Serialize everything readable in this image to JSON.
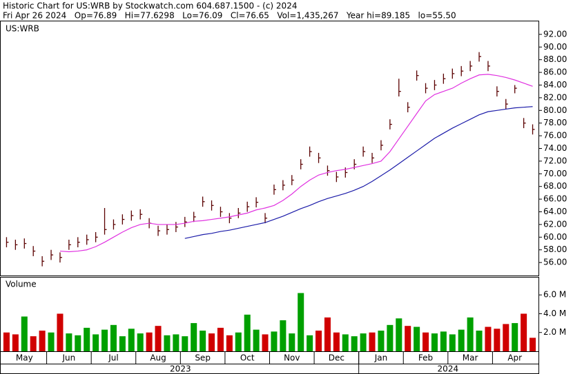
{
  "header": {
    "line1": "Historic Chart for US:WRB by Stockwatch.com 604.687.1500 - (c) 2024",
    "line2": "Fri Apr 26 2024   Op=76.89   Hi=77.6298   Lo=76.09   Cl=76.65   Vol=1,435,267   Year hi=89.185   lo=55.50"
  },
  "chart_data": {
    "type": "stock",
    "symbol": "US:WRB",
    "x": [
      "2023-05",
      "2023-05",
      "2023-05",
      "2023-05",
      "2023-05",
      "2023-06",
      "2023-06",
      "2023-06",
      "2023-06",
      "2023-06",
      "2023-07",
      "2023-07",
      "2023-07",
      "2023-07",
      "2023-07",
      "2023-08",
      "2023-08",
      "2023-08",
      "2023-08",
      "2023-08",
      "2023-09",
      "2023-09",
      "2023-09",
      "2023-09",
      "2023-09",
      "2023-10",
      "2023-10",
      "2023-10",
      "2023-10",
      "2023-10",
      "2023-11",
      "2023-11",
      "2023-11",
      "2023-11",
      "2023-11",
      "2023-12",
      "2023-12",
      "2023-12",
      "2023-12",
      "2023-12",
      "2024-01",
      "2024-01",
      "2024-01",
      "2024-01",
      "2024-01",
      "2024-02",
      "2024-02",
      "2024-02",
      "2024-02",
      "2024-02",
      "2024-03",
      "2024-03",
      "2024-03",
      "2024-03",
      "2024-03",
      "2024-04",
      "2024-04",
      "2024-04",
      "2024-04",
      "2024-04"
    ],
    "x_tick_labels": [
      {
        "value": "2023-05",
        "label": "May"
      },
      {
        "value": "2023-06",
        "label": "Jun"
      },
      {
        "value": "2023-07",
        "label": "Jul"
      },
      {
        "value": "2023-08",
        "label": "Aug"
      },
      {
        "value": "2023-09",
        "label": "Sep"
      },
      {
        "value": "2023-10",
        "label": "Oct"
      },
      {
        "value": "2023-11",
        "label": "Nov"
      },
      {
        "value": "2023-12",
        "label": "Dec"
      },
      {
        "value": "2024-01",
        "label": "Jan"
      },
      {
        "value": "2024-02",
        "label": "Feb"
      },
      {
        "value": "2024-03",
        "label": "Mar"
      },
      {
        "value": "2024-04",
        "label": "Apr"
      }
    ],
    "year_labels": [
      "2023",
      "2024"
    ],
    "high": [
      60.0,
      59.6,
      59.8,
      58.6,
      57.0,
      58.0,
      57.6,
      59.6,
      60.0,
      60.4,
      60.8,
      64.6,
      62.8,
      63.6,
      64.2,
      64.4,
      63.0,
      61.8,
      62.0,
      62.4,
      63.2,
      64.0,
      66.4,
      65.8,
      64.8,
      63.8,
      64.6,
      65.6,
      66.3,
      63.8,
      68.3,
      69.0,
      69.8,
      72.3,
      74.3,
      73.3,
      71.3,
      70.3,
      71.0,
      72.3,
      74.3,
      73.3,
      75.3,
      78.6,
      85.0,
      81.3,
      86.3,
      84.3,
      84.8,
      85.8,
      86.6,
      87.0,
      87.8,
      89.2,
      87.8,
      83.8,
      81.8,
      84.0,
      78.8,
      77.8
    ],
    "low": [
      58.4,
      58.0,
      58.2,
      57.0,
      55.4,
      56.4,
      56.0,
      58.0,
      58.4,
      58.8,
      59.2,
      60.4,
      61.2,
      62.0,
      62.6,
      62.8,
      61.4,
      60.2,
      60.4,
      60.8,
      61.6,
      62.4,
      64.8,
      64.2,
      63.2,
      62.2,
      63.0,
      64.0,
      64.7,
      62.2,
      66.7,
      67.4,
      68.2,
      70.7,
      72.7,
      71.7,
      69.7,
      68.7,
      69.4,
      70.7,
      72.7,
      71.7,
      73.7,
      77.0,
      82.2,
      79.7,
      84.7,
      82.7,
      83.2,
      84.2,
      85.0,
      85.4,
      86.2,
      87.7,
      86.2,
      82.2,
      80.2,
      82.7,
      77.2,
      76.2
    ],
    "close": [
      59.2,
      58.8,
      59.0,
      57.8,
      56.2,
      57.2,
      56.8,
      58.8,
      59.2,
      59.6,
      60.0,
      61.2,
      62.0,
      62.8,
      63.4,
      63.6,
      62.2,
      61.0,
      61.2,
      61.6,
      62.4,
      63.2,
      65.6,
      65.0,
      64.0,
      63.0,
      63.8,
      64.8,
      65.5,
      63.0,
      67.5,
      68.2,
      69.0,
      71.5,
      73.5,
      72.5,
      70.5,
      69.5,
      70.2,
      71.5,
      73.5,
      72.5,
      74.5,
      77.8,
      83.0,
      80.5,
      85.5,
      83.5,
      84.0,
      85.0,
      85.8,
      86.2,
      87.0,
      88.5,
      87.0,
      83.0,
      81.0,
      83.5,
      78.0,
      77.0
    ],
    "bar_color": "#5a0000",
    "moving_averages": [
      {
        "color": "#e030e0",
        "values": [
          null,
          null,
          null,
          null,
          null,
          null,
          57.8,
          57.7,
          57.8,
          58.0,
          58.5,
          59.2,
          60.0,
          60.8,
          61.5,
          62.0,
          62.2,
          62.0,
          62.0,
          62.0,
          62.2,
          62.5,
          62.6,
          62.8,
          63.0,
          63.2,
          63.5,
          63.8,
          64.3,
          64.6,
          65.0,
          65.8,
          66.8,
          68.0,
          69.0,
          69.8,
          70.2,
          70.5,
          70.7,
          71.0,
          71.3,
          71.6,
          72.0,
          73.5,
          75.5,
          77.5,
          79.5,
          81.5,
          82.5,
          83.0,
          83.5,
          84.3,
          85.0,
          85.6,
          85.7,
          85.5,
          85.2,
          84.8,
          84.3,
          83.8
        ]
      },
      {
        "color": "#1a1aa8",
        "values": [
          null,
          null,
          null,
          null,
          null,
          null,
          null,
          null,
          null,
          null,
          null,
          null,
          null,
          null,
          null,
          null,
          null,
          null,
          null,
          null,
          59.8,
          60.1,
          60.4,
          60.6,
          60.9,
          61.1,
          61.4,
          61.7,
          62.0,
          62.3,
          62.8,
          63.3,
          63.9,
          64.5,
          65.0,
          65.6,
          66.1,
          66.5,
          66.9,
          67.4,
          68.0,
          68.8,
          69.7,
          70.6,
          71.6,
          72.6,
          73.6,
          74.6,
          75.6,
          76.4,
          77.2,
          77.9,
          78.6,
          79.3,
          79.8,
          80.0,
          80.2,
          80.4,
          80.5,
          80.6
        ]
      }
    ],
    "ylim": [
      53.95,
      94.16
    ],
    "yticks": [
      {
        "value": 56,
        "label": "56.00"
      },
      {
        "value": 58,
        "label": "58.00"
      },
      {
        "value": 60,
        "label": "60.00"
      },
      {
        "value": 62,
        "label": "62.00"
      },
      {
        "value": 64,
        "label": "64.00"
      },
      {
        "value": 66,
        "label": "66.00"
      },
      {
        "value": 68,
        "label": "68.00"
      },
      {
        "value": 70,
        "label": "70.00"
      },
      {
        "value": 72,
        "label": "72.00"
      },
      {
        "value": 74,
        "label": "74.00"
      },
      {
        "value": 76,
        "label": "76.00"
      },
      {
        "value": 78,
        "label": "78.00"
      },
      {
        "value": 80,
        "label": "80.00"
      },
      {
        "value": 82,
        "label": "82.00"
      },
      {
        "value": 84,
        "label": "84.00"
      },
      {
        "value": 86,
        "label": "86.00"
      },
      {
        "value": 88,
        "label": "88.00"
      },
      {
        "value": 90,
        "label": "90.00"
      },
      {
        "value": 92,
        "label": "92.00"
      }
    ],
    "volume": {
      "label": "Volume",
      "up_color": "#00a000",
      "down_color": "#d00000",
      "values": [
        2000000,
        1800000,
        3700000,
        1600000,
        2200000,
        2000000,
        4000000,
        1900000,
        1700000,
        2500000,
        1800000,
        2300000,
        2800000,
        1600000,
        2400000,
        1900000,
        2000000,
        2700000,
        1700000,
        1800000,
        1600000,
        3000000,
        2200000,
        1900000,
        2500000,
        1700000,
        2000000,
        3900000,
        2300000,
        1800000,
        2100000,
        3300000,
        1900000,
        6200000,
        1700000,
        2200000,
        3600000,
        2000000,
        1800000,
        1600000,
        1900000,
        2000000,
        2200000,
        2800000,
        3500000,
        2700000,
        2600000,
        2000000,
        1900000,
        2100000,
        1800000,
        2300000,
        3600000,
        2200000,
        2600000,
        2400000,
        2900000,
        3000000,
        4000000,
        1435267
      ],
      "ylim": [
        0,
        7920000
      ],
      "yticks": [
        {
          "value": 2000000,
          "label": "2.0 M"
        },
        {
          "value": 4000000,
          "label": "4.0 M"
        },
        {
          "value": 6000000,
          "label": "6.0 M"
        }
      ]
    }
  }
}
